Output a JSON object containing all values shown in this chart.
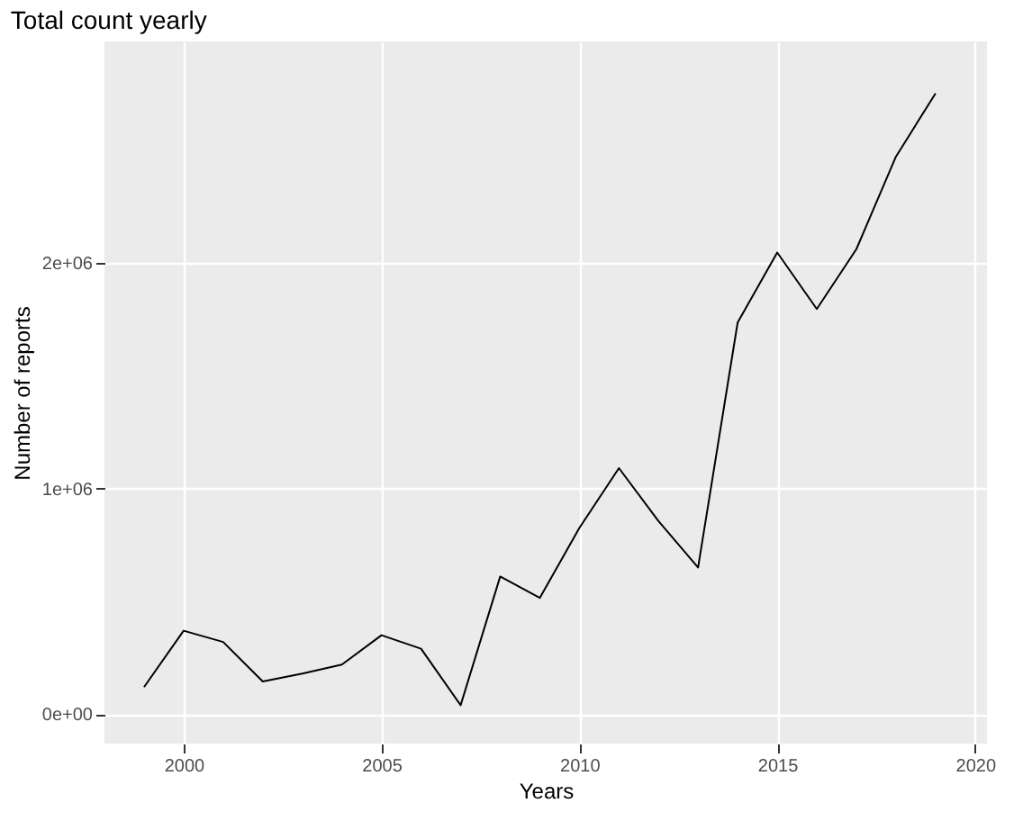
{
  "chart_data": {
    "type": "line",
    "title": "Total count yearly",
    "xlabel": "Years",
    "ylabel": "Number of reports",
    "x": [
      1999,
      2000,
      2001,
      2002,
      2003,
      2004,
      2005,
      2006,
      2007,
      2008,
      2009,
      2010,
      2011,
      2012,
      2013,
      2014,
      2015,
      2016,
      2017,
      2018,
      2019
    ],
    "series": [
      {
        "color": "#000000",
        "values": [
          120000,
          370000,
          320000,
          145000,
          180000,
          220000,
          350000,
          290000,
          40000,
          610000,
          515000,
          825000,
          1090000,
          855000,
          650000,
          1735000,
          2045000,
          1795000,
          2060000,
          2470000,
          2750000
        ]
      }
    ],
    "xlim": [
      1998,
      2020.3
    ],
    "xticks": [
      2000,
      2005,
      2010,
      2015,
      2020
    ],
    "ylim": [
      -130000,
      2980000
    ],
    "yticks": [
      {
        "value": 0,
        "label": "0e+00"
      },
      {
        "value": 1000000,
        "label": "1e+06"
      },
      {
        "value": 2000000,
        "label": "2e+06"
      }
    ],
    "grid": true,
    "marker": "none",
    "line_style": "solid"
  }
}
